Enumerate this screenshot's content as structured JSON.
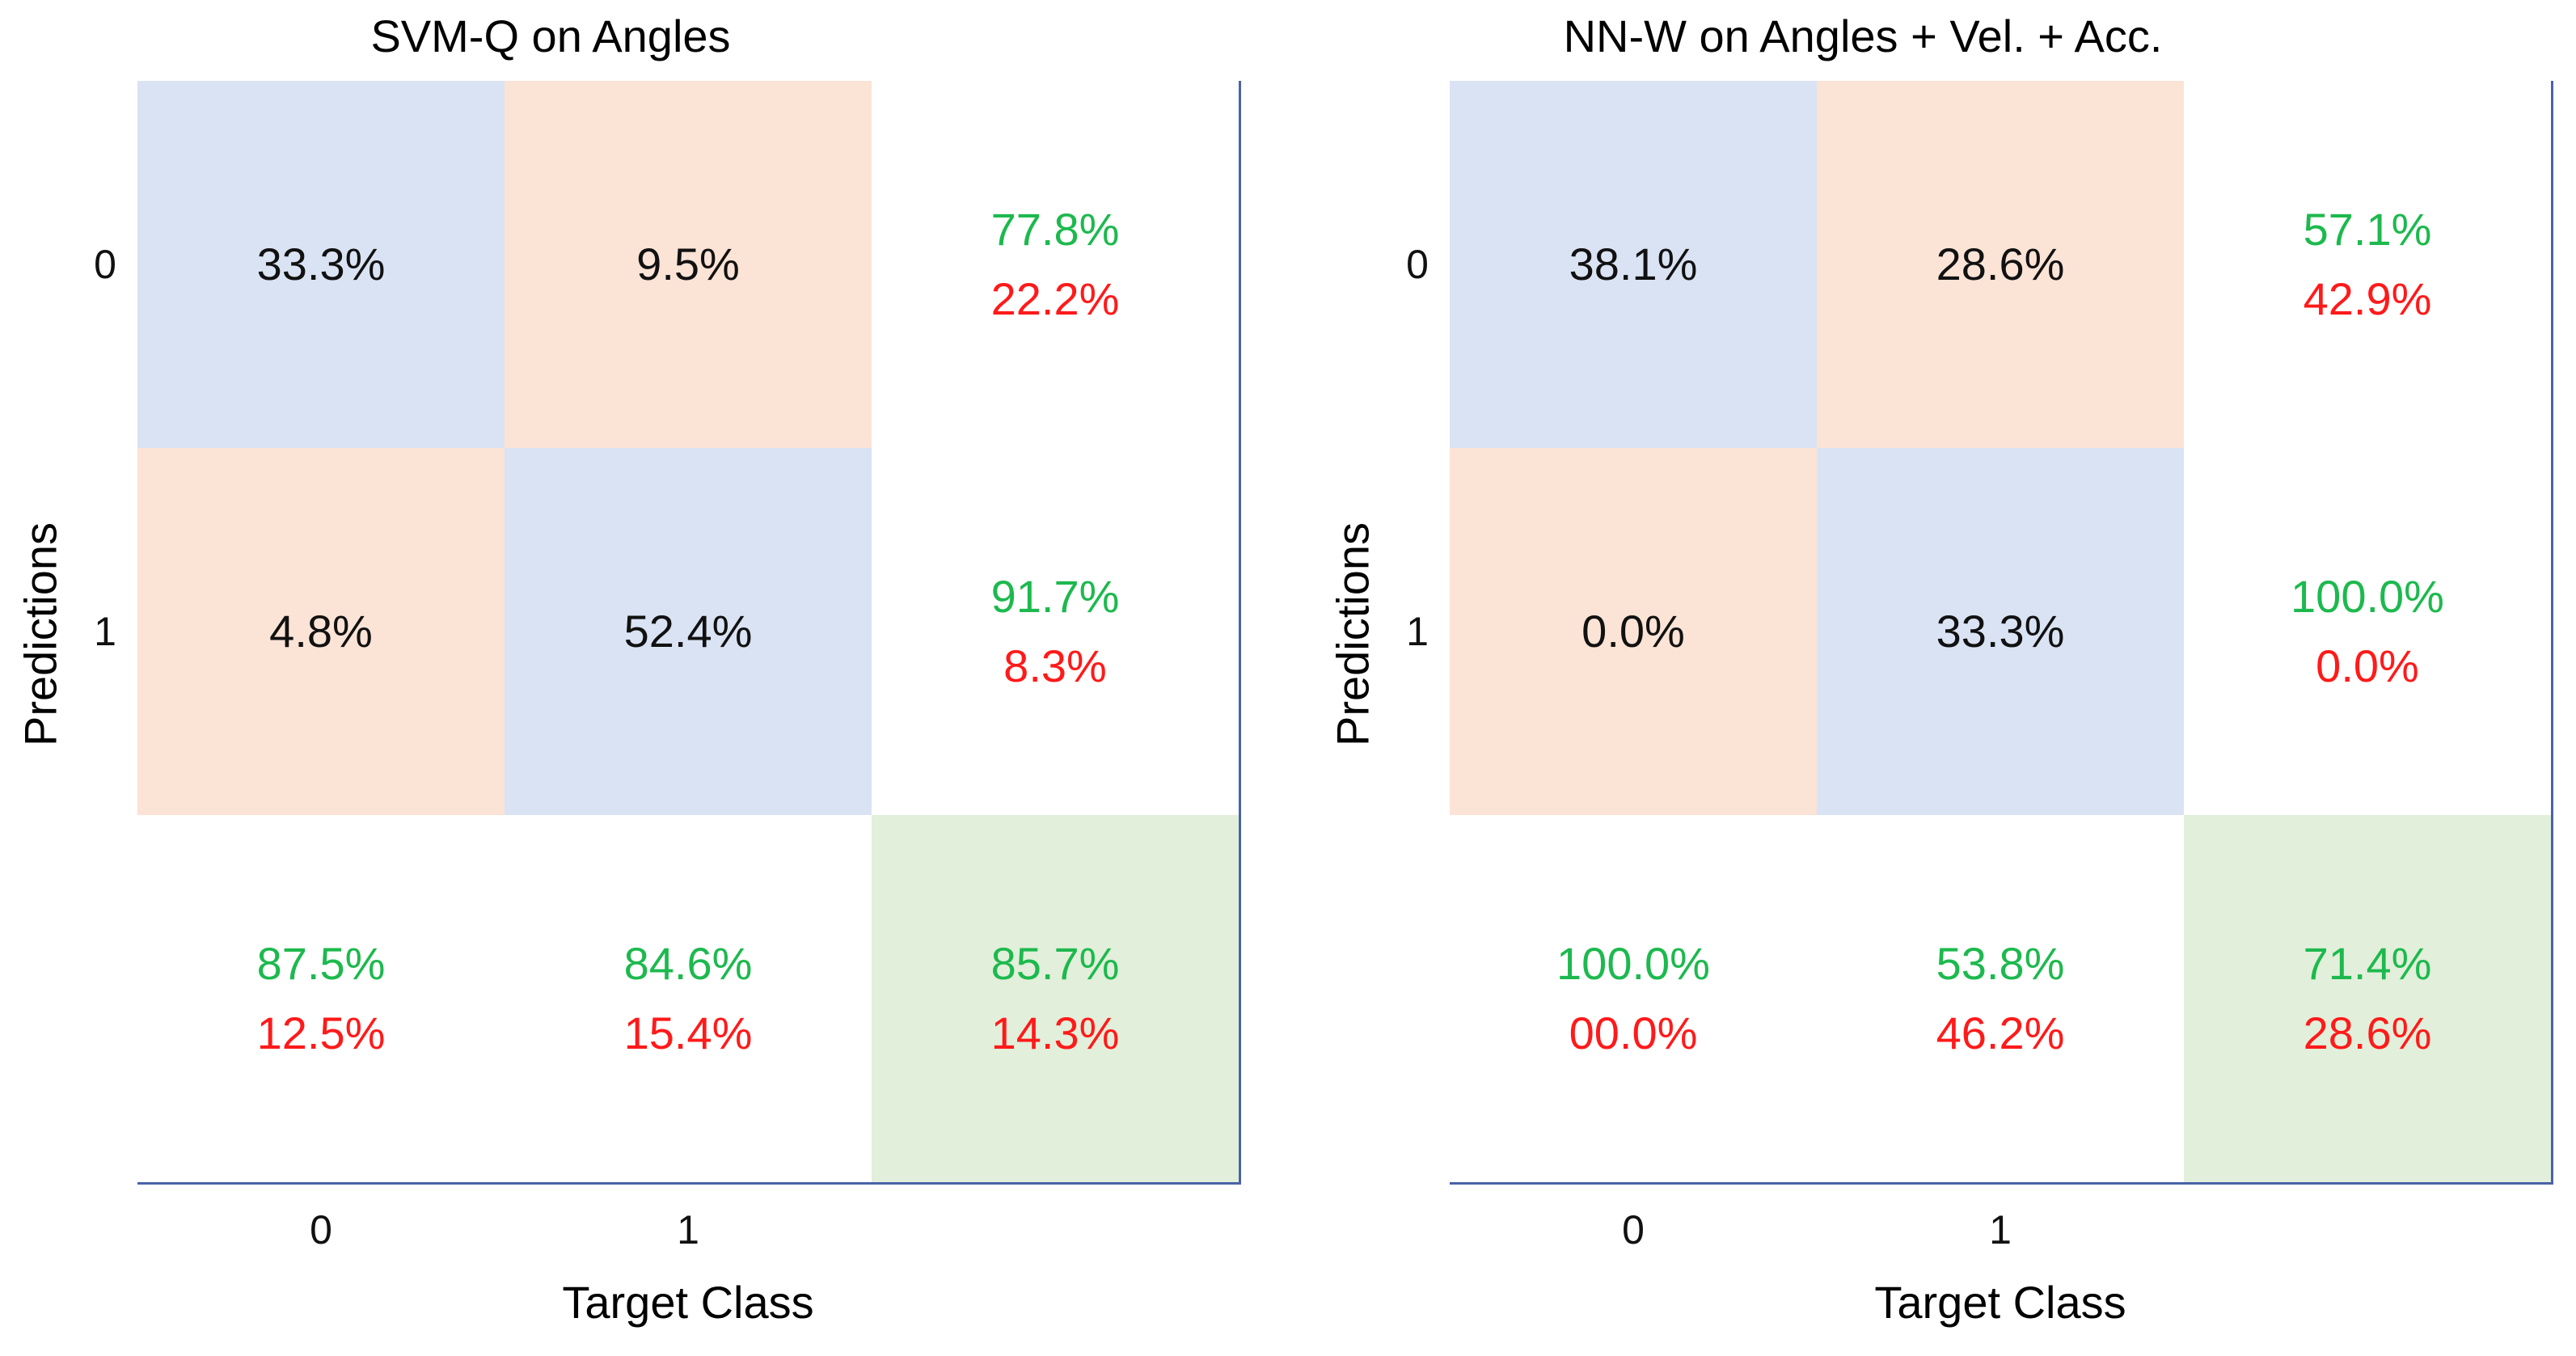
{
  "colors": {
    "correct": "#dae3f3",
    "incorrect": "#fbe3d6",
    "overall": "#e2efda",
    "summary": "#ffffff",
    "border": "#4a63a8",
    "good_text": "#1db94e",
    "bad_text": "#ff1a1a"
  },
  "chart_data": [
    {
      "type": "table",
      "title": "SVM-Q on Angles",
      "xlabel": "Target Class",
      "ylabel": "Predictions",
      "x_ticks": [
        "0",
        "1"
      ],
      "y_ticks": [
        "0",
        "1"
      ],
      "cells": [
        [
          {
            "kind": "correct",
            "main": "33.3%"
          },
          {
            "kind": "incorrect",
            "main": "9.5%"
          },
          {
            "kind": "summary",
            "good": "77.8%",
            "bad": "22.2%"
          }
        ],
        [
          {
            "kind": "incorrect",
            "main": "4.8%"
          },
          {
            "kind": "correct",
            "main": "52.4%"
          },
          {
            "kind": "summary",
            "good": "91.7%",
            "bad": "8.3%"
          }
        ],
        [
          {
            "kind": "summary",
            "good": "87.5%",
            "bad": "12.5%"
          },
          {
            "kind": "summary",
            "good": "84.6%",
            "bad": "15.4%"
          },
          {
            "kind": "overall",
            "good": "85.7%",
            "bad": "14.3%"
          }
        ]
      ]
    },
    {
      "type": "table",
      "title": "NN-W on Angles + Vel. + Acc.",
      "xlabel": "Target Class",
      "ylabel": "Predictions",
      "x_ticks": [
        "0",
        "1"
      ],
      "y_ticks": [
        "0",
        "1"
      ],
      "cells": [
        [
          {
            "kind": "correct",
            "main": "38.1%"
          },
          {
            "kind": "incorrect",
            "main": "28.6%"
          },
          {
            "kind": "summary",
            "good": "57.1%",
            "bad": "42.9%"
          }
        ],
        [
          {
            "kind": "incorrect",
            "main": "0.0%"
          },
          {
            "kind": "correct",
            "main": "33.3%"
          },
          {
            "kind": "summary",
            "good": "100.0%",
            "bad": "0.0%"
          }
        ],
        [
          {
            "kind": "summary",
            "good": "100.0%",
            "bad": "00.0%"
          },
          {
            "kind": "summary",
            "good": "53.8%",
            "bad": "46.2%"
          },
          {
            "kind": "overall",
            "good": "71.4%",
            "bad": "28.6%"
          }
        ]
      ]
    }
  ]
}
